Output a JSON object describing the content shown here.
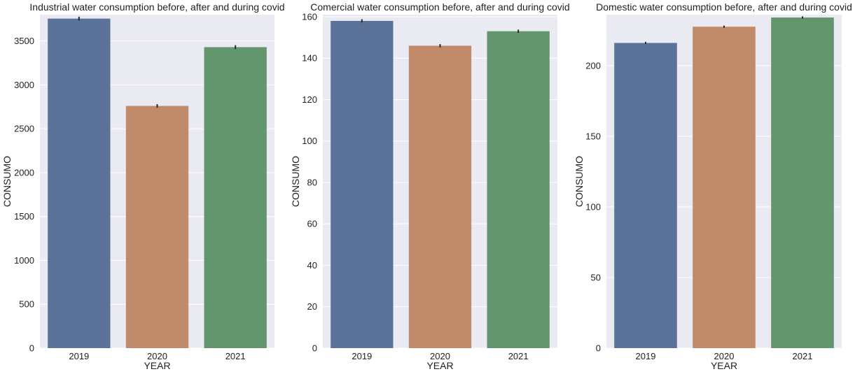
{
  "chart_data": [
    {
      "type": "bar",
      "title": "Industrial water consumption before, after and during covid",
      "xlabel": "YEAR",
      "ylabel": "CONSUMO",
      "categories": [
        "2019",
        "2020",
        "2021"
      ],
      "values": [
        3755,
        2760,
        3430
      ],
      "error": [
        22,
        20,
        22
      ],
      "ylim": [
        0,
        3800
      ],
      "yticks": [
        0,
        500,
        1000,
        1500,
        2000,
        2500,
        3000,
        3500
      ],
      "colors": [
        "#5b7399",
        "#c08a6b",
        "#64966e"
      ],
      "grid": true,
      "legend": "none"
    },
    {
      "type": "bar",
      "title": "Comercial water consumption before, after and during covid",
      "xlabel": "YEAR",
      "ylabel": "CONSUMO",
      "categories": [
        "2019",
        "2020",
        "2021"
      ],
      "values": [
        158,
        146,
        153
      ],
      "error": [
        0.8,
        0.8,
        0.8
      ],
      "ylim": [
        0,
        161
      ],
      "yticks": [
        0,
        20,
        40,
        60,
        80,
        100,
        120,
        140,
        160
      ],
      "colors": [
        "#5b7399",
        "#c08a6b",
        "#64966e"
      ],
      "grid": true,
      "legend": "none"
    },
    {
      "type": "bar",
      "title": "Domestic water consumption before, after and during covid",
      "xlabel": "YEAR",
      "ylabel": "CONSUMO",
      "categories": [
        "2019",
        "2020",
        "2021"
      ],
      "values": [
        216,
        227.5,
        234
      ],
      "error": [
        0.8,
        0.8,
        0.8
      ],
      "ylim": [
        0,
        236
      ],
      "yticks": [
        0,
        50,
        100,
        150,
        200
      ],
      "colors": [
        "#5b7399",
        "#c08a6b",
        "#64966e"
      ],
      "grid": true,
      "legend": "none"
    }
  ]
}
